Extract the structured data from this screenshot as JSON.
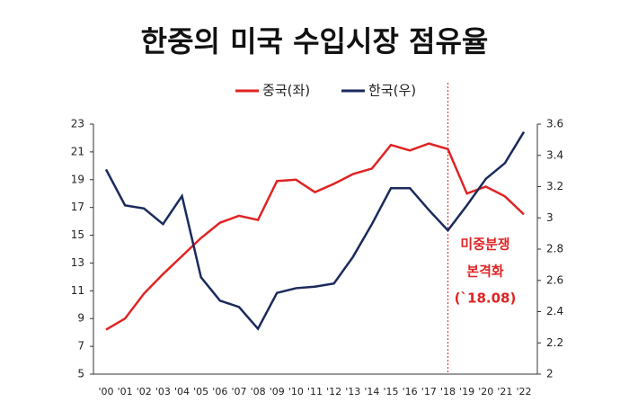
{
  "chart_data": {
    "type": "line",
    "title": "한중의 미국  수입시장 점유율",
    "categories": [
      "'00",
      "'01",
      "'02",
      "'03",
      "'04",
      "'05",
      "'06",
      "'07",
      "'08",
      "'09",
      "'10",
      "'11",
      "'12",
      "'13",
      "'14",
      "'15",
      "'16",
      "'17",
      "'18",
      "'19",
      "'20",
      "'21",
      "'22"
    ],
    "series": [
      {
        "name": "중국(좌)",
        "color": "#e02323",
        "values": [
          8.2,
          9.0,
          10.8,
          12.2,
          13.5,
          14.8,
          15.9,
          16.4,
          16.1,
          18.9,
          19.0,
          18.1,
          18.7,
          19.4,
          19.8,
          21.5,
          21.1,
          21.6,
          21.2,
          18.0,
          18.5,
          17.8,
          16.5
        ]
      },
      {
        "name": "한국(우)",
        "color": "#1b2a5c",
        "axis": "y2",
        "values": [
          3.31,
          3.08,
          3.06,
          2.96,
          3.14,
          2.62,
          2.47,
          2.43,
          2.29,
          2.52,
          2.55,
          2.56,
          2.58,
          2.75,
          2.96,
          3.19,
          3.19,
          3.05,
          2.92,
          3.08,
          3.25,
          3.35,
          3.55
        ]
      }
    ],
    "ylim": [
      5,
      23
    ],
    "yticks": [
      5,
      7,
      9,
      11,
      13,
      15,
      17,
      19,
      21,
      23
    ],
    "y2lim": [
      2,
      3.6
    ],
    "y2ticks": [
      2,
      2.2,
      2.4,
      2.6,
      2.8,
      3,
      3.2,
      3.4,
      3.6
    ],
    "annotations": [
      "미중분쟁",
      "본격화",
      "(`18.08)"
    ],
    "annotation_color": "#e02323"
  }
}
